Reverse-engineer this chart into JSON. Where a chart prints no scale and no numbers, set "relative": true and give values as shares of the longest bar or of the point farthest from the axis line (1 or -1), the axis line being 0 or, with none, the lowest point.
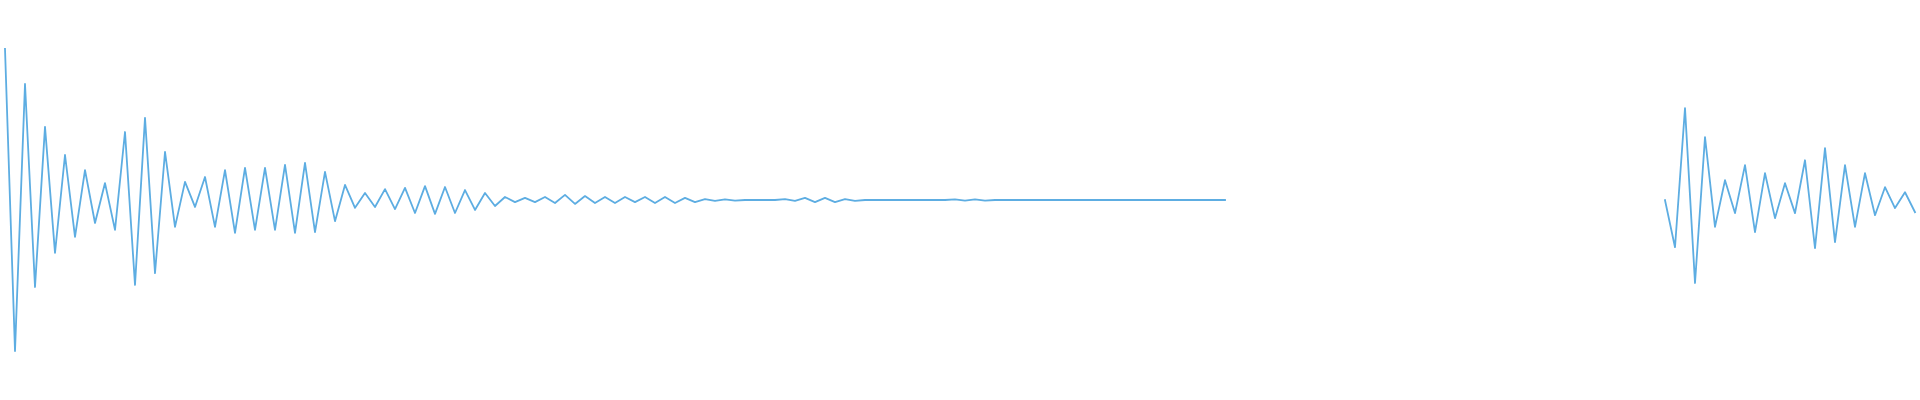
{
  "chart_data": [
    {
      "type": "line",
      "relative": true,
      "categories": [
        null,
        null,
        null,
        null,
        null,
        null,
        null,
        null,
        null,
        null,
        null,
        null,
        null,
        null,
        null,
        null,
        null,
        null,
        null,
        null,
        null,
        null,
        null,
        null,
        null,
        null,
        null,
        null,
        null,
        null,
        null,
        null,
        null,
        null,
        null,
        null,
        null,
        null,
        null,
        null,
        null,
        null,
        null,
        null,
        null,
        null,
        null,
        null,
        null,
        null,
        null,
        null,
        null,
        null,
        null,
        null,
        null,
        null,
        null,
        null,
        null,
        null,
        null,
        null,
        null,
        null,
        null,
        null,
        null,
        null,
        null,
        null,
        null,
        null,
        null,
        null,
        null,
        null,
        null,
        null,
        null,
        null,
        null,
        null,
        null,
        null,
        null,
        null,
        null,
        null,
        null,
        null,
        null,
        null,
        null,
        null,
        null,
        null,
        null,
        null,
        null,
        null,
        null,
        null,
        null,
        null,
        null,
        null,
        null,
        null,
        null,
        null,
        null,
        null,
        null,
        null,
        null,
        null,
        null,
        null,
        null,
        null,
        null
      ],
      "series": [
        {
          "color": "#5dade2",
          "values": [
            1.0,
            0.0,
            0.884,
            0.212,
            0.742,
            0.325,
            0.649,
            0.378,
            0.599,
            0.424,
            0.556,
            0.401,
            0.725,
            0.219,
            0.772,
            0.258,
            0.659,
            0.411,
            0.56,
            0.477,
            0.576,
            0.411,
            0.599,
            0.391,
            0.606,
            0.401,
            0.606,
            0.401,
            0.616,
            0.391,
            0.623,
            0.394,
            0.593,
            0.43,
            0.55,
            0.474,
            0.523,
            0.477,
            0.536,
            0.47,
            0.54,
            0.457,
            0.546,
            0.454,
            0.543,
            0.457,
            0.533,
            0.467,
            0.523,
            0.48,
            0.51,
            0.493,
            0.507,
            0.493,
            0.51,
            0.49,
            0.517,
            0.487,
            0.513,
            0.49,
            0.51,
            0.49,
            0.51,
            0.493,
            0.51,
            0.49,
            0.51,
            0.49,
            0.507,
            0.493,
            0.503,
            0.497,
            0.502,
            0.498,
            0.5,
            0.5,
            0.5,
            0.5,
            0.503,
            0.497,
            0.507,
            0.493,
            0.507,
            0.493,
            0.503,
            0.497,
            0.5,
            0.5,
            0.5,
            0.5,
            0.5,
            0.5,
            0.5,
            0.5,
            0.5,
            0.502,
            0.498,
            0.502,
            0.498,
            0.5,
            0.5,
            0.5,
            0.5,
            0.5,
            0.5,
            0.5,
            0.5,
            0.5,
            0.5,
            0.5,
            0.5,
            0.5,
            0.5,
            0.5,
            0.5,
            0.5,
            0.5,
            0.5,
            0.5,
            0.5,
            0.5,
            0.5,
            0.5
          ]
        }
      ]
    },
    {
      "type": "line",
      "relative": true,
      "categories": [
        null,
        null,
        null,
        null,
        null,
        null,
        null,
        null,
        null,
        null,
        null,
        null,
        null,
        null,
        null,
        null,
        null,
        null,
        null,
        null,
        null,
        null,
        null,
        null,
        null,
        null
      ],
      "series": [
        {
          "color": "#5dade2",
          "values": [
            0.474,
            0.205,
            1.0,
            0.0,
            0.834,
            0.321,
            0.588,
            0.4,
            0.674,
            0.291,
            0.628,
            0.371,
            0.571,
            0.4,
            0.702,
            0.2,
            0.771,
            0.234,
            0.674,
            0.321,
            0.628,
            0.388,
            0.548,
            0.429,
            0.519,
            0.405
          ]
        }
      ]
    }
  ]
}
